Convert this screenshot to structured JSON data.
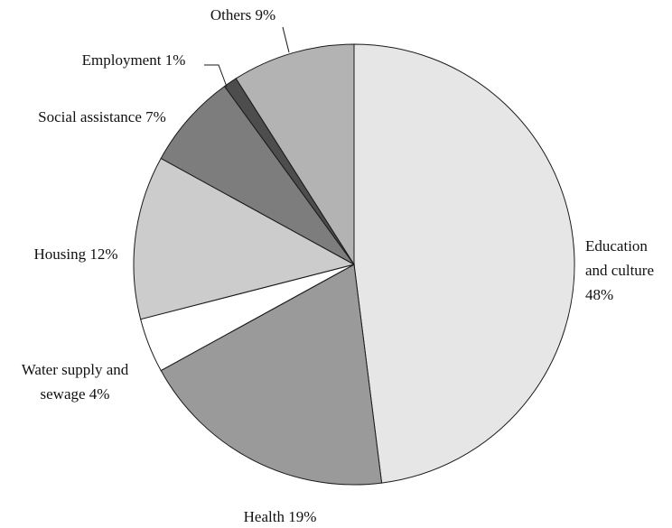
{
  "chart_data": {
    "type": "pie",
    "title": "",
    "slices": [
      {
        "label_lines": [
          "Education",
          "and culture",
          "48%"
        ],
        "category": "Education and culture",
        "value": 48,
        "color": "#e6e6e6"
      },
      {
        "label_lines": [
          "Health 19%"
        ],
        "category": "Health",
        "value": 19,
        "color": "#9a9a9a"
      },
      {
        "label_lines": [
          "Water supply and",
          "sewage 4%"
        ],
        "category": "Water supply and sewage",
        "value": 4,
        "color": "#ffffff"
      },
      {
        "label_lines": [
          "Housing 12%"
        ],
        "category": "Housing",
        "value": 12,
        "color": "#cccccc"
      },
      {
        "label_lines": [
          "Social assistance 7%"
        ],
        "category": "Social assistance",
        "value": 7,
        "color": "#7d7d7d"
      },
      {
        "label_lines": [
          "Employment 1%"
        ],
        "category": "Employment",
        "value": 1,
        "color": "#4d4d4d"
      },
      {
        "label_lines": [
          "Others 9%"
        ],
        "category": "Others",
        "value": 9,
        "color": "#b3b3b3"
      }
    ]
  }
}
